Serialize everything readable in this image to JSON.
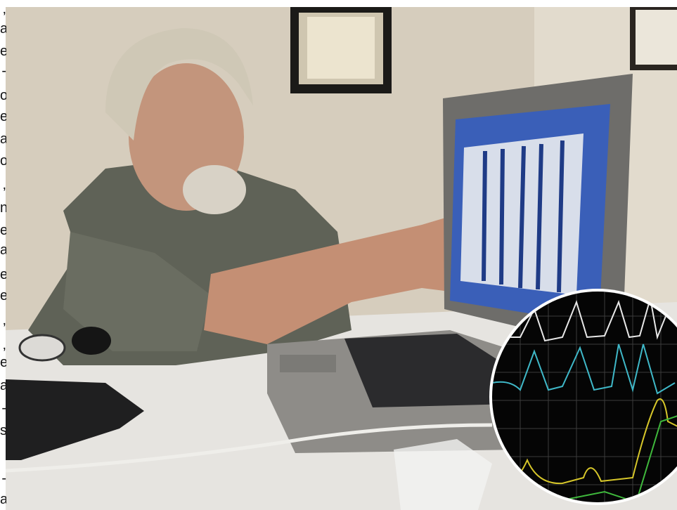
{
  "side_text": [
    ",",
    "a",
    "e",
    "-",
    "o",
    "e",
    "a",
    "o",
    ",",
    "n",
    "e",
    "a",
    "e",
    "e",
    ",",
    ",",
    "e",
    "a",
    "-",
    "s",
    "-",
    "a"
  ]
}
